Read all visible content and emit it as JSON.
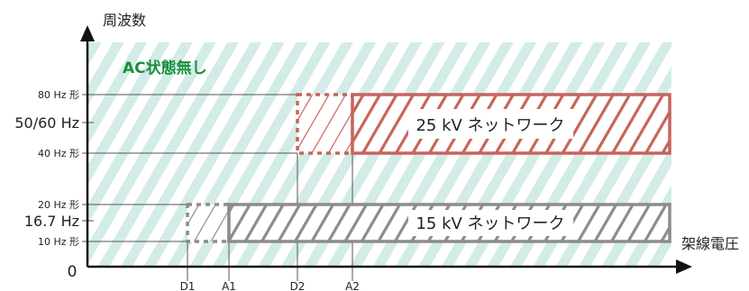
{
  "axes": {
    "y_title": "周波数",
    "x_title": "架線電圧",
    "origin": "0"
  },
  "background_label": "AC状態無し",
  "y_ticks": {
    "hz80": "80 Hz 形",
    "hz5060": "50/60 Hz",
    "hz40": "40 Hz 形",
    "hz20": "20 Hz 形",
    "hz167": "16.7 Hz",
    "hz10": "10 Hz 形"
  },
  "x_ticks": {
    "d1": "D1",
    "a1": "A1",
    "d2": "D2",
    "a2": "A2"
  },
  "networks": {
    "ac25": {
      "label": "25 kV ネットワーク",
      "color": "#c8645a"
    },
    "ac15": {
      "label": "15 kV ネットワーク",
      "color": "#8c8c8c"
    }
  },
  "colors": {
    "background_hatch": "#d3ece8",
    "background_label": "#1a8f3c",
    "axis": "#111111",
    "gridline": "#555555"
  }
}
